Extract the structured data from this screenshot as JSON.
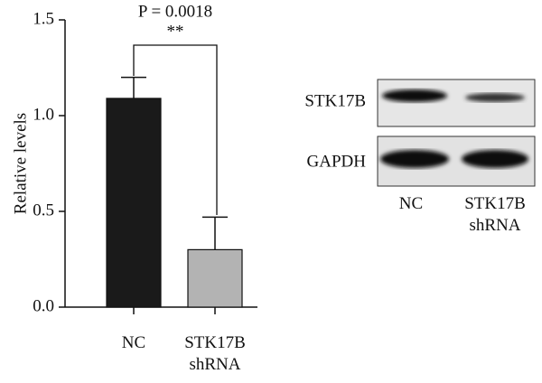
{
  "chart_data": {
    "type": "bar",
    "y_label": "Relative levels",
    "categories": [
      "NC",
      "STK17B shRNA"
    ],
    "values": [
      1.09,
      0.3
    ],
    "errors": [
      0.11,
      0.17
    ],
    "colors": [
      "#1a1a1a",
      "#b3b3b3"
    ],
    "ylim": [
      0,
      1.5
    ],
    "yticks": [
      {
        "value": 0,
        "label": "0.0"
      },
      0.5,
      {
        "value": 1,
        "label": "1.0"
      },
      1.5
    ],
    "annotations": {
      "p_value": "P = 0.0018",
      "significance": "**"
    }
  },
  "blot": {
    "rows": [
      "STK17B",
      "GAPDH"
    ],
    "lanes": [
      "NC",
      "STK17B shRNA"
    ]
  }
}
